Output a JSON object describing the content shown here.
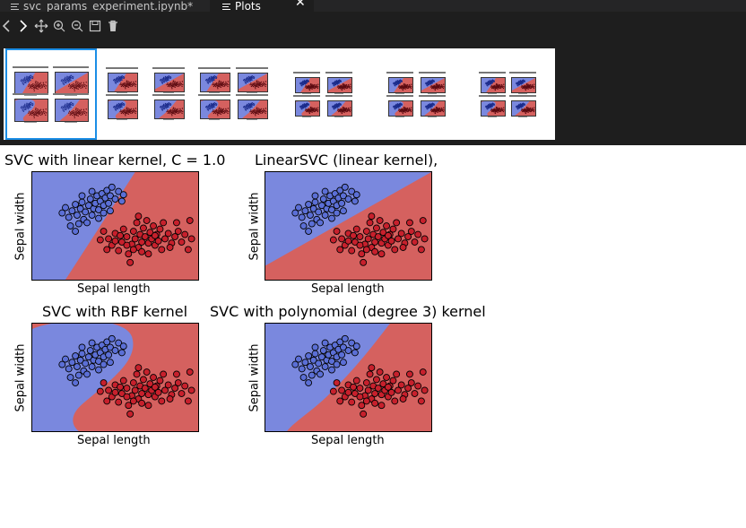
{
  "tabs": [
    {
      "label": "svc_params_experiment.ipynb*",
      "active": false
    },
    {
      "label": "Plots",
      "active": true
    }
  ],
  "tab_close_glyph": "✕",
  "toolbar": {
    "icons": [
      "chevron-left-icon",
      "chevron-right-icon",
      "pan-move-icon",
      "zoom-in-icon",
      "zoom-out-icon",
      "save-icon",
      "trash-icon"
    ]
  },
  "colors": {
    "class_a_region": "#7a88de",
    "class_b_region": "#d5615f",
    "class_a_point": "#5b6fd6",
    "class_b_point": "#c7202c",
    "selected_thumb": "#1b8ee6",
    "chrome_bg": "#1e1e1e"
  },
  "figure": {
    "plots": [
      {
        "title": "SVC with linear kernel, C = 1.0",
        "xlabel": "Sepal length",
        "ylabel": "Sepal width"
      },
      {
        "title": "LinearSVC (linear kernel),",
        "xlabel": "Sepal length",
        "ylabel": "Sepal width"
      },
      {
        "title": "SVC with RBF kernel",
        "xlabel": "Sepal length",
        "ylabel": "Sepal width"
      },
      {
        "title": "SVC with polynomial (degree 3) kernel",
        "xlabel": "Sepal length",
        "ylabel": "Sepal width"
      }
    ]
  },
  "chart_data": [
    {
      "type": "scatter",
      "title": "SVC with linear kernel, C = 1.0",
      "xlabel": "Sepal length",
      "ylabel": "Sepal width",
      "grid": false
    },
    {
      "type": "scatter",
      "title": "LinearSVC (linear kernel),",
      "xlabel": "Sepal length",
      "ylabel": "Sepal width",
      "grid": false
    },
    {
      "type": "scatter",
      "title": "SVC with RBF kernel",
      "xlabel": "Sepal length",
      "ylabel": "Sepal width",
      "grid": false
    },
    {
      "type": "scatter",
      "title": "SVC with polynomial (degree 3) kernel",
      "xlabel": "Sepal length",
      "ylabel": "Sepal width",
      "grid": false
    }
  ],
  "points": {
    "class_a": [
      [
        0.18,
        0.38
      ],
      [
        0.2,
        0.33
      ],
      [
        0.22,
        0.42
      ],
      [
        0.24,
        0.36
      ],
      [
        0.26,
        0.3
      ],
      [
        0.27,
        0.4
      ],
      [
        0.29,
        0.34
      ],
      [
        0.3,
        0.28
      ],
      [
        0.31,
        0.44
      ],
      [
        0.32,
        0.37
      ],
      [
        0.34,
        0.31
      ],
      [
        0.35,
        0.25
      ],
      [
        0.36,
        0.4
      ],
      [
        0.37,
        0.34
      ],
      [
        0.38,
        0.29
      ],
      [
        0.39,
        0.22
      ],
      [
        0.4,
        0.35
      ],
      [
        0.41,
        0.27
      ],
      [
        0.42,
        0.2
      ],
      [
        0.43,
        0.31
      ],
      [
        0.44,
        0.24
      ],
      [
        0.45,
        0.17
      ],
      [
        0.46,
        0.29
      ],
      [
        0.47,
        0.22
      ],
      [
        0.48,
        0.14
      ],
      [
        0.5,
        0.25
      ],
      [
        0.52,
        0.18
      ],
      [
        0.54,
        0.27
      ],
      [
        0.43,
        0.38
      ],
      [
        0.33,
        0.47
      ],
      [
        0.28,
        0.48
      ],
      [
        0.23,
        0.5
      ],
      [
        0.4,
        0.43
      ],
      [
        0.47,
        0.36
      ],
      [
        0.36,
        0.18
      ],
      [
        0.3,
        0.22
      ],
      [
        0.26,
        0.55
      ],
      [
        0.55,
        0.21
      ]
    ],
    "class_b": [
      [
        0.43,
        0.55
      ],
      [
        0.46,
        0.62
      ],
      [
        0.48,
        0.68
      ],
      [
        0.5,
        0.57
      ],
      [
        0.52,
        0.73
      ],
      [
        0.54,
        0.65
      ],
      [
        0.55,
        0.53
      ],
      [
        0.57,
        0.6
      ],
      [
        0.58,
        0.76
      ],
      [
        0.6,
        0.67
      ],
      [
        0.61,
        0.55
      ],
      [
        0.62,
        0.62
      ],
      [
        0.63,
        0.47
      ],
      [
        0.64,
        0.7
      ],
      [
        0.65,
        0.58
      ],
      [
        0.66,
        0.65
      ],
      [
        0.67,
        0.52
      ],
      [
        0.68,
        0.6
      ],
      [
        0.69,
        0.45
      ],
      [
        0.7,
        0.66
      ],
      [
        0.71,
        0.56
      ],
      [
        0.72,
        0.62
      ],
      [
        0.73,
        0.5
      ],
      [
        0.74,
        0.68
      ],
      [
        0.75,
        0.58
      ],
      [
        0.76,
        0.64
      ],
      [
        0.77,
        0.53
      ],
      [
        0.78,
        0.72
      ],
      [
        0.8,
        0.62
      ],
      [
        0.82,
        0.57
      ],
      [
        0.84,
        0.66
      ],
      [
        0.86,
        0.6
      ],
      [
        0.88,
        0.55
      ],
      [
        0.9,
        0.65
      ],
      [
        0.92,
        0.58
      ],
      [
        0.94,
        0.72
      ],
      [
        0.96,
        0.62
      ],
      [
        0.95,
        0.45
      ],
      [
        0.53,
        0.59
      ],
      [
        0.45,
        0.72
      ],
      [
        0.59,
        0.84
      ],
      [
        0.41,
        0.63
      ],
      [
        0.64,
        0.41
      ],
      [
        0.7,
        0.76
      ],
      [
        0.79,
        0.47
      ],
      [
        0.87,
        0.47
      ],
      [
        0.83,
        0.7
      ],
      [
        0.57,
        0.68
      ],
      [
        0.5,
        0.64
      ],
      [
        0.61,
        0.72
      ],
      [
        0.74,
        0.59
      ],
      [
        0.66,
        0.74
      ]
    ]
  }
}
